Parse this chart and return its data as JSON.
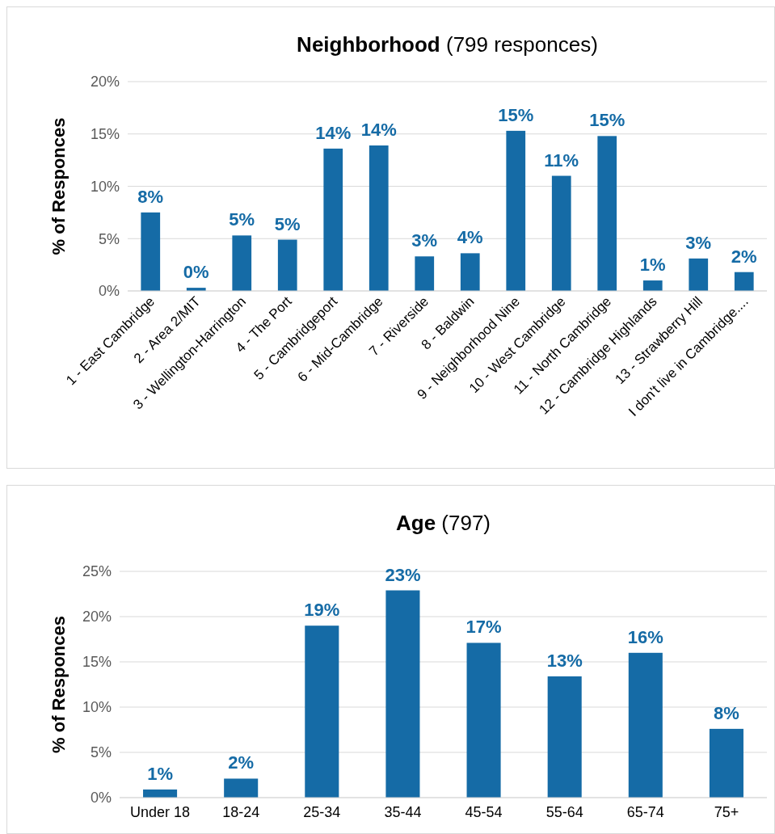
{
  "chart_data": [
    {
      "type": "bar",
      "title": "Neighborhood",
      "subtitle": "(799 responces)",
      "ylabel": "% of Responces",
      "categories": [
        "1 - East Cambridge",
        "2 - Area 2/MIT",
        "3 - Wellington-Harrington",
        "4 - The Port",
        "5 - Cambridgeport",
        "6 - Mid-Cambridge",
        "7 - Riverside",
        "8 - Baldwin",
        "9 - Neighborhood Nine",
        "10 - West Cambridge",
        "11 - North Cambridge",
        "12 - Cambridge Highlands",
        "13 - Strawberry Hill",
        "I don't live in Cambridge...."
      ],
      "values": [
        7.5,
        0.3,
        5.3,
        4.9,
        13.6,
        13.9,
        3.3,
        3.6,
        15.3,
        11.0,
        14.8,
        1.0,
        3.1,
        1.8
      ],
      "value_labels": [
        "8%",
        "0%",
        "5%",
        "5%",
        "14%",
        "14%",
        "3%",
        "4%",
        "15%",
        "11%",
        "15%",
        "1%",
        "3%",
        "2%"
      ],
      "color": "#156ba6",
      "ylim": [
        0,
        20
      ],
      "yticks": [
        {
          "value": 0,
          "label": "0%"
        },
        {
          "value": 5,
          "label": "5%"
        },
        {
          "value": 10,
          "label": "10%"
        },
        {
          "value": 15,
          "label": "15%"
        },
        {
          "value": 20,
          "label": "20%"
        }
      ],
      "grid": "y"
    },
    {
      "type": "bar",
      "title": "Age",
      "subtitle": "(797)",
      "ylabel": "% of Responces",
      "categories": [
        "Under 18",
        "18-24",
        "25-34",
        "35-44",
        "45-54",
        "55-64",
        "65-74",
        "75+"
      ],
      "values": [
        0.9,
        2.1,
        19.0,
        22.9,
        17.1,
        13.4,
        16.0,
        7.6
      ],
      "value_labels": [
        "1%",
        "2%",
        "19%",
        "23%",
        "17%",
        "13%",
        "16%",
        "8%"
      ],
      "color": "#156ba6",
      "ylim": [
        0,
        25
      ],
      "yticks": [
        {
          "value": 0,
          "label": "0%"
        },
        {
          "value": 5,
          "label": "5%"
        },
        {
          "value": 10,
          "label": "10%"
        },
        {
          "value": 15,
          "label": "15%"
        },
        {
          "value": 20,
          "label": "20%"
        },
        {
          "value": 25,
          "label": "25%"
        }
      ],
      "grid": "y"
    }
  ]
}
